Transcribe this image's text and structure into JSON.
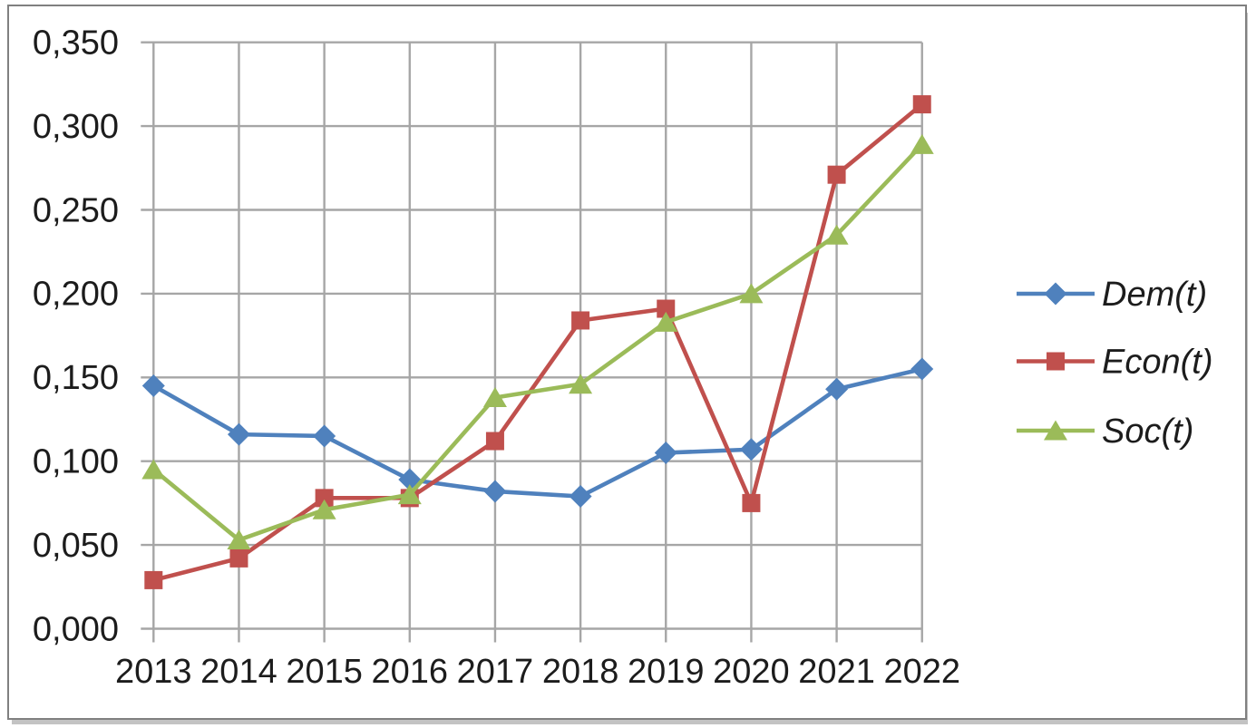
{
  "frame": {
    "border_color": "#808080",
    "shadow_color": "#c3c3c3",
    "background": "#ffffff"
  },
  "chart_data": {
    "type": "line",
    "title": "",
    "xlabel": "",
    "ylabel": "",
    "categories": [
      "2013",
      "2014",
      "2015",
      "2016",
      "2017",
      "2018",
      "2019",
      "2020",
      "2021",
      "2022"
    ],
    "series": [
      {
        "name": "Dem(t)",
        "color": "#4f81bd",
        "marker": "diamond",
        "values": [
          0.145,
          0.116,
          0.115,
          0.089,
          0.082,
          0.079,
          0.105,
          0.107,
          0.143,
          0.155
        ]
      },
      {
        "name": "Econ(t)",
        "color": "#c0504d",
        "marker": "square",
        "values": [
          0.029,
          0.042,
          0.078,
          0.078,
          0.112,
          0.184,
          0.191,
          0.075,
          0.271,
          0.313
        ]
      },
      {
        "name": "Soc(t)",
        "color": "#9bbb59",
        "marker": "triangle",
        "values": [
          0.095,
          0.053,
          0.071,
          0.08,
          0.138,
          0.146,
          0.183,
          0.2,
          0.235,
          0.289
        ]
      }
    ],
    "y_axis": {
      "min": 0,
      "max": 0.35,
      "step": 0.05,
      "tick_labels": [
        "0,000",
        "0,050",
        "0,100",
        "0,150",
        "0,200",
        "0,250",
        "0,300",
        "0,350"
      ],
      "decimal_separator": ","
    },
    "grid": true,
    "gridline_color": "#a6a6a6",
    "axis_color": "#a6a6a6",
    "text_color": "#1c1c1c",
    "legend_position": "right"
  }
}
